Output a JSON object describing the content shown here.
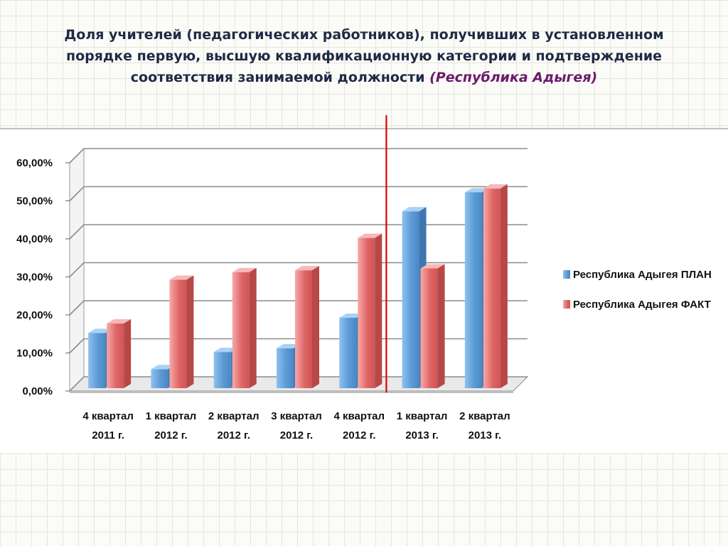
{
  "title": {
    "line1": "Доля учителей (педагогических работников), получивших в установленном",
    "line2": "порядке первую, высшую квалификационную категории и подтверждение",
    "line3_main": "соответствия занимаемой должности ",
    "line3_region": "(Республика Адыгея)"
  },
  "chart_data": {
    "type": "bar",
    "categories": [
      [
        "4 квартал",
        "2011 г."
      ],
      [
        "1 квартал",
        "2012 г."
      ],
      [
        "2 квартал",
        "2012 г."
      ],
      [
        "3 квартал",
        "2012 г."
      ],
      [
        "4  квартал",
        "2012 г."
      ],
      [
        "1  квартал",
        "2013 г."
      ],
      [
        "2  квартал",
        "2013 г."
      ]
    ],
    "series": [
      {
        "name": "Республика Адыгея ПЛАН",
        "values": [
          14.5,
          5.0,
          9.5,
          10.5,
          18.5,
          46.5,
          51.5
        ],
        "color": "#5b9bd5"
      },
      {
        "name": "Республика Адыгея ФАКТ",
        "values": [
          17.0,
          28.5,
          30.5,
          31.0,
          39.5,
          31.5,
          52.5
        ],
        "color": "#e06666"
      }
    ],
    "ylim": [
      0,
      60
    ],
    "yticks": [
      "0,00%",
      "10,00%",
      "20,00%",
      "30,00%",
      "40,00%",
      "50,00%",
      "60,00%"
    ],
    "legend": "right",
    "divider_after_category": 4,
    "divider_color": "#e00000"
  }
}
